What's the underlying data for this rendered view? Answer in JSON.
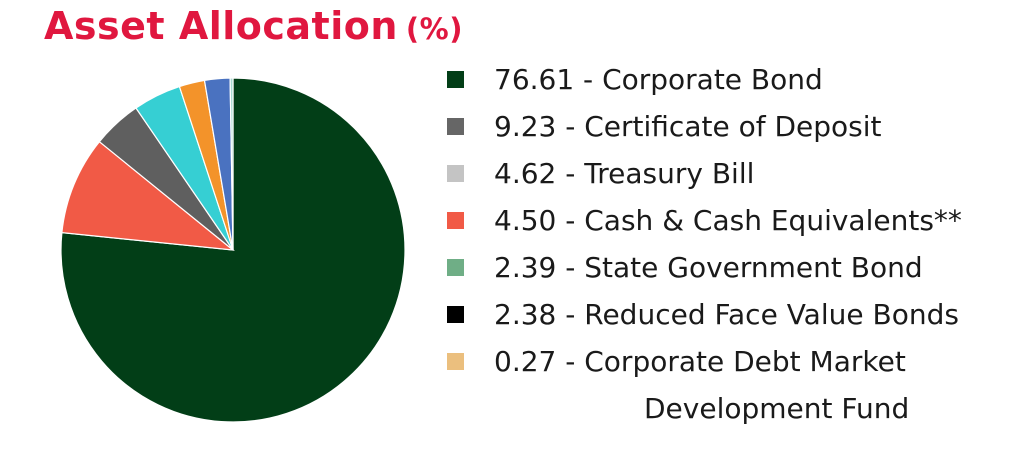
{
  "chart_data": {
    "type": "pie",
    "title": "Asset Allocation",
    "title_unit": "(%)",
    "title_color": "#e0173f",
    "legend_position": "right",
    "slices": [
      {
        "label": "76.61 - Corporate Bond",
        "value": 76.61,
        "color": "#023e17"
      },
      {
        "label": "9.23 - Certificate of Deposit",
        "value": 9.23,
        "color": "#f15a46"
      },
      {
        "label": "4.62 - Treasury Bill",
        "value": 4.62,
        "color": "#5f5f5f"
      },
      {
        "label": "4.50 - Cash & Cash Equivalents**",
        "value": 4.5,
        "color": "#36cfd3"
      },
      {
        "label": "2.39 - State Government Bond",
        "value": 2.39,
        "color": "#f3932a"
      },
      {
        "label": "2.38 - Reduced Face Value Bonds",
        "value": 2.38,
        "color": "#4a72c0"
      },
      {
        "label": "0.27 - Corporate Debt Market Development Fund",
        "value": 0.27,
        "color": "#a8d8d0"
      }
    ],
    "legend": [
      {
        "label": "76.61 - Corporate Bond",
        "color": "#023e17"
      },
      {
        "label": "9.23 - Certificate of Deposit",
        "color": "#666666"
      },
      {
        "label": "4.62 - Treasury Bill",
        "color": "#c4c4c4"
      },
      {
        "label": "4.50 - Cash & Cash Equivalents**",
        "color": "#f15a46"
      },
      {
        "label": "2.39 - State Government Bond",
        "color": "#6fae86"
      },
      {
        "label": "2.38 - Reduced Face Value Bonds",
        "color": "#000000"
      },
      {
        "label_line1": "0.27 - Corporate Debt Market",
        "label_line2": "Development Fund",
        "color": "#ebbf7e"
      }
    ]
  }
}
